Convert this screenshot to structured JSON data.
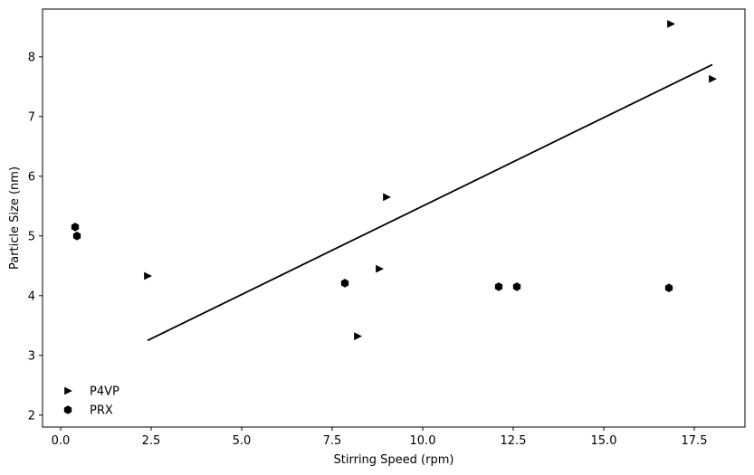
{
  "chart_data": {
    "type": "scatter",
    "title": "",
    "xlabel": "Stirring Speed (rpm)",
    "ylabel": "Particle Size (nm)",
    "xlim": [
      -0.5,
      18.9
    ],
    "ylim": [
      1.8,
      8.8
    ],
    "xticks": [
      0.0,
      2.5,
      5.0,
      7.5,
      10.0,
      12.5,
      15.0,
      17.5
    ],
    "xtick_labels": [
      "0.0",
      "2.5",
      "5.0",
      "7.5",
      "10.0",
      "12.5",
      "15.0",
      "17.5"
    ],
    "yticks": [
      2,
      3,
      4,
      5,
      6,
      7,
      8
    ],
    "ytick_labels": [
      "2",
      "3",
      "4",
      "5",
      "6",
      "7",
      "8"
    ],
    "grid": false,
    "legend_position": "lower-left",
    "series": [
      {
        "name": "P4VP",
        "marker": "triangle-right",
        "color": "#000000",
        "x": [
          2.4,
          8.2,
          8.8,
          9.0,
          16.85,
          18.0
        ],
        "y": [
          4.33,
          3.32,
          4.45,
          5.65,
          8.55,
          7.63
        ]
      },
      {
        "name": "PRX",
        "marker": "hexagon",
        "color": "#000000",
        "x": [
          0.4,
          0.45,
          7.85,
          12.1,
          12.6,
          16.8
        ],
        "y": [
          5.15,
          5.0,
          4.21,
          4.15,
          4.15,
          4.13
        ]
      }
    ],
    "fit_line": {
      "color": "#000000",
      "x": [
        2.4,
        18.0
      ],
      "y": [
        3.25,
        7.87
      ]
    }
  }
}
